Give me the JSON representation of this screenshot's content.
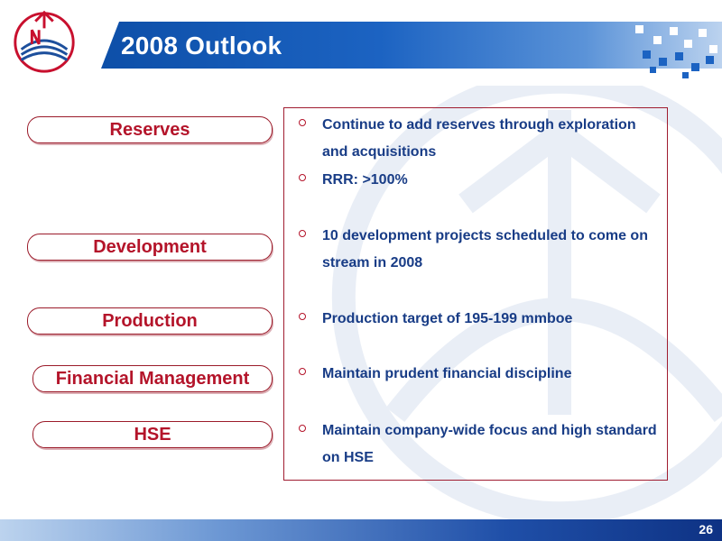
{
  "slide": {
    "title": "2008 Outlook",
    "page_number": "26"
  },
  "categories": [
    "Reserves",
    "Development",
    "Production",
    "Financial Management",
    "HSE"
  ],
  "bullets": [
    "Continue to add reserves through exploration and acquisitions",
    "RRR: >100%",
    "10 development projects scheduled to come on stream in 2008",
    "Production target of 195-199 mmboe",
    "Maintain prudent financial discipline",
    "Maintain company-wide focus and high standard on HSE"
  ],
  "logo": {
    "name": "cnooc-logo",
    "text": "CNOOC"
  },
  "colors": {
    "title_band": "#1c63c2",
    "accent_red": "#b4142a",
    "bullet_text": "#183c86"
  }
}
